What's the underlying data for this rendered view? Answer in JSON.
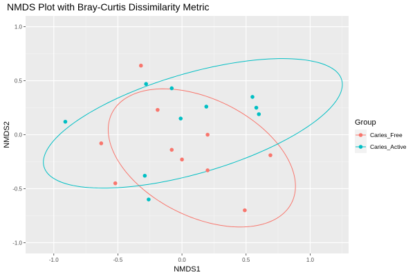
{
  "chart_data": {
    "type": "scatter",
    "title": "NMDS Plot with Bray-Curtis Dissimilarity Metric",
    "xlabel": "NMDS1",
    "ylabel": "NMDS2",
    "xlim": [
      -1.22,
      1.3
    ],
    "ylim": [
      -1.1,
      1.1
    ],
    "x_ticks": [
      -1.0,
      -0.5,
      0.0,
      0.5,
      1.0
    ],
    "x_tick_labels": [
      "-1.0",
      "-0.5",
      "0.0",
      "0.5",
      "1.0"
    ],
    "y_ticks": [
      -1.0,
      -0.5,
      0.0,
      0.5,
      1.0
    ],
    "y_tick_labels": [
      "-1.0",
      "-0.5",
      "0.0",
      "0.5",
      "1.0"
    ],
    "grid": true,
    "legend": {
      "title": "Group",
      "placement": "right"
    },
    "series": [
      {
        "name": "Caries_Free",
        "color": "#F8766D",
        "x": [
          -0.32,
          -0.19,
          -0.63,
          -0.08,
          0.0,
          0.2,
          0.2,
          0.69,
          -0.52,
          0.49
        ],
        "y": [
          0.64,
          0.23,
          -0.08,
          -0.14,
          -0.23,
          -0.33,
          0.0,
          -0.19,
          -0.45,
          -0.7
        ],
        "ellipse": {
          "cx": 0.155,
          "cy": -0.215,
          "rx": 0.82,
          "ry": 0.52,
          "angle_deg": -36
        }
      },
      {
        "name": "Caries_Active",
        "color": "#00BFC4",
        "x": [
          -0.91,
          -0.28,
          -0.08,
          0.19,
          -0.01,
          0.55,
          0.58,
          0.6,
          -0.29,
          -0.26
        ],
        "y": [
          0.12,
          0.47,
          0.43,
          0.26,
          0.15,
          0.35,
          0.25,
          0.19,
          -0.38,
          -0.6
        ],
        "ellipse": {
          "cx": 0.085,
          "cy": 0.105,
          "rx": 1.23,
          "ry": 0.455,
          "angle_deg": 20
        }
      }
    ]
  }
}
